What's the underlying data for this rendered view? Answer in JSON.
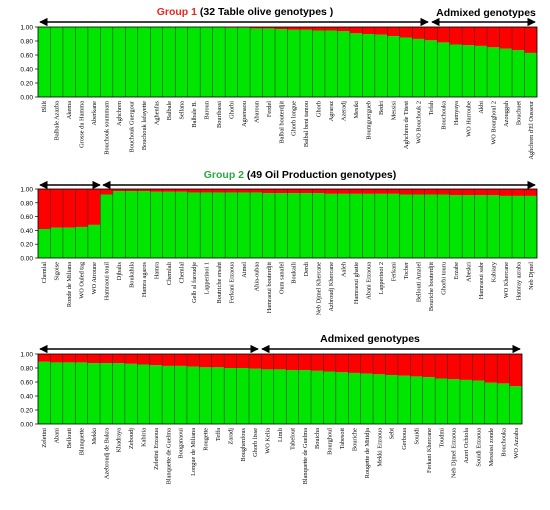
{
  "colors": {
    "cluster1": "#ff0000",
    "cluster2": "#00e600",
    "divider": "#2a2a2a"
  },
  "panels": [
    {
      "title_group": "Group 1",
      "title_rest": " (32 Table olive  genotypes )",
      "title_color": "#e8281e",
      "admix_label": "Admixed genotypes",
      "admix_label_color": "#000000"
    },
    {
      "title_group": "Group 2",
      "title_rest": " (49 Oil Production genotypes)",
      "title_color": "#2aa847",
      "admix_label": "",
      "admix_label_color": "#000000"
    },
    {
      "title_group": "",
      "title_rest": "",
      "title_color": "#000000",
      "admix_label": "Admixed genotypes",
      "admix_label_color": "#000000"
    }
  ],
  "chart_data": [
    {
      "type": "bar",
      "stacked": true,
      "ylim": [
        0,
        1
      ],
      "yticks": [
        "0.00",
        "0.20",
        "0.40",
        "0.60",
        "0.80",
        "1.00"
      ],
      "categories": [
        "Blilt",
        "Balbale Azazba",
        "Akema",
        "Grosse du Hamma",
        "Aberkane",
        "Bouchouk soummam",
        "Aghchren",
        "Bouchouk Guergour",
        "Bouchouk lafayette",
        "Aghenfas",
        "Balbale",
        "Sellana",
        "Balbale B.",
        "Baroun",
        "Bouribassi",
        "Ghorbi",
        "Aguenaou",
        "Abaroun",
        "Ferdel",
        "Balbal bouterdjit",
        "Ghorb longue",
        "Balbal beni tamou",
        "Ghorb",
        "Agraraz",
        "Azeradj",
        "Mesiki",
        "Boumguergueb",
        "Bedri",
        "Messisi",
        "Aghchren de Titest",
        "WO Bouchouk 2",
        "Tefah",
        "Bouchouka",
        "Hamyaya",
        "WO Harroube",
        "Akbi",
        "WO Bourghoul 2",
        "Azouggah",
        "Bouchuet",
        "Aghchren d'El Ousseur"
      ],
      "series": [
        {
          "values": [
            0.0,
            0.0,
            0.0,
            0.0,
            0.0,
            0.0,
            0.0,
            0.0,
            0.0,
            0.0,
            0.0,
            0.0,
            0.0,
            0.0,
            0.0,
            0.01,
            0.01,
            0.02,
            0.02,
            0.03,
            0.04,
            0.04,
            0.05,
            0.05,
            0.06,
            0.09,
            0.1,
            0.11,
            0.13,
            0.15,
            0.17,
            0.19,
            0.22,
            0.25,
            0.26,
            0.27,
            0.29,
            0.31,
            0.33,
            0.37
          ]
        },
        {
          "values": [
            1.0,
            1.0,
            1.0,
            1.0,
            1.0,
            1.0,
            1.0,
            1.0,
            1.0,
            1.0,
            1.0,
            1.0,
            1.0,
            1.0,
            1.0,
            0.99,
            0.99,
            0.98,
            0.98,
            0.97,
            0.96,
            0.96,
            0.95,
            0.95,
            0.94,
            0.91,
            0.9,
            0.89,
            0.87,
            0.85,
            0.83,
            0.81,
            0.78,
            0.75,
            0.74,
            0.73,
            0.71,
            0.69,
            0.67,
            0.63
          ]
        }
      ]
    },
    {
      "type": "bar",
      "stacked": true,
      "ylim": [
        0,
        1
      ],
      "yticks": [
        "0.00",
        "0.20",
        "0.40",
        "0.60",
        "0.80",
        "1.00"
      ],
      "categories": [
        "Chemlal",
        "Sigoise",
        "Ronde de Miliana",
        "WO Ouled tag",
        "WO Atroune",
        "Hamraoui touil",
        "Djbalis",
        "Boukahila",
        "Hamra agaros",
        "Hamra",
        "Chemlali",
        "Chemlal",
        "Gelb al faroudje",
        "Lapperinoi 1",
        "Boutriche ersaht",
        "Ferkani Erzaoua",
        "Aimel",
        "Ahia-oubaa",
        "Hamraoui bouterdjit",
        "Oum sanafel",
        "Boukaili",
        "Derdi",
        "Neb Djmel Khercane",
        "Azbroudj Khercane",
        "Aaleh",
        "Hamraoui ghatie",
        "Abani Erzaoua",
        "Lapperinoi 2",
        "Ferkani",
        "Tocber",
        "Bellouti Amziel",
        "Bouriche bouterdjit",
        "Ghorbi touru",
        "Erzabe",
        "Abeskri",
        "Hamraoui sabr",
        "Kabiary",
        "WO Khercane",
        "Hamray azraba",
        "Neb Djmel"
      ],
      "series": [
        {
          "values": [
            0.58,
            0.56,
            0.56,
            0.55,
            0.52,
            0.08,
            0.03,
            0.03,
            0.03,
            0.04,
            0.04,
            0.04,
            0.05,
            0.05,
            0.05,
            0.05,
            0.05,
            0.05,
            0.06,
            0.06,
            0.06,
            0.06,
            0.06,
            0.07,
            0.07,
            0.07,
            0.07,
            0.07,
            0.07,
            0.08,
            0.08,
            0.08,
            0.08,
            0.09,
            0.09,
            0.09,
            0.09,
            0.1,
            0.1,
            0.1
          ]
        },
        {
          "values": [
            0.42,
            0.44,
            0.44,
            0.45,
            0.48,
            0.92,
            0.97,
            0.97,
            0.97,
            0.96,
            0.96,
            0.96,
            0.95,
            0.95,
            0.95,
            0.95,
            0.95,
            0.95,
            0.94,
            0.94,
            0.94,
            0.94,
            0.94,
            0.93,
            0.93,
            0.93,
            0.93,
            0.93,
            0.93,
            0.92,
            0.92,
            0.92,
            0.92,
            0.91,
            0.91,
            0.91,
            0.91,
            0.9,
            0.9,
            0.9
          ]
        }
      ]
    },
    {
      "type": "bar",
      "stacked": true,
      "ylim": [
        0,
        1
      ],
      "yticks": [
        "0.00",
        "0.20",
        "0.40",
        "0.60",
        "0.80",
        "1.00"
      ],
      "categories": [
        "Zeletini",
        "Abani",
        "Bellouti",
        "Blanquette",
        "Mekki",
        "Azebroudj de Bukra",
        "Khadraya",
        "Zeboudj",
        "Kabiria",
        "Zeletini Erzaoua",
        "Blanquette de Guelma",
        "Bouganaoui",
        "Longue de Miliana",
        "Rougette",
        "Teffa",
        "Zaradj",
        "Boughenfous",
        "Ghorb lisse",
        "WO Kelia",
        "Limli",
        "Tabelout",
        "Blanquette de Guelma",
        "Bouicha",
        "Bourghoul",
        "Tabesoit",
        "Bouriche",
        "Rougette de Mitidja",
        "Mekki Erzaoua",
        "Sebt",
        "Gerboua",
        "Souidi",
        "Ferkani Khercane",
        "Toudmi",
        "Neb Djmel Erzaoua",
        "Azeri Ochiola",
        "Souidi Erzaoua",
        "Messissi zonde",
        "Bouchouka",
        "WO Azzaba"
      ],
      "series": [
        {
          "values": [
            0.11,
            0.12,
            0.12,
            0.12,
            0.13,
            0.13,
            0.13,
            0.14,
            0.15,
            0.16,
            0.17,
            0.17,
            0.18,
            0.19,
            0.19,
            0.2,
            0.2,
            0.21,
            0.22,
            0.22,
            0.23,
            0.23,
            0.24,
            0.25,
            0.26,
            0.27,
            0.28,
            0.29,
            0.3,
            0.31,
            0.32,
            0.33,
            0.35,
            0.36,
            0.37,
            0.38,
            0.41,
            0.42,
            0.46
          ]
        },
        {
          "values": [
            0.89,
            0.88,
            0.88,
            0.88,
            0.87,
            0.87,
            0.87,
            0.86,
            0.85,
            0.84,
            0.83,
            0.83,
            0.82,
            0.81,
            0.81,
            0.8,
            0.8,
            0.79,
            0.78,
            0.78,
            0.77,
            0.77,
            0.76,
            0.75,
            0.74,
            0.73,
            0.72,
            0.71,
            0.7,
            0.69,
            0.68,
            0.67,
            0.65,
            0.64,
            0.63,
            0.62,
            0.59,
            0.58,
            0.54
          ]
        }
      ]
    }
  ]
}
